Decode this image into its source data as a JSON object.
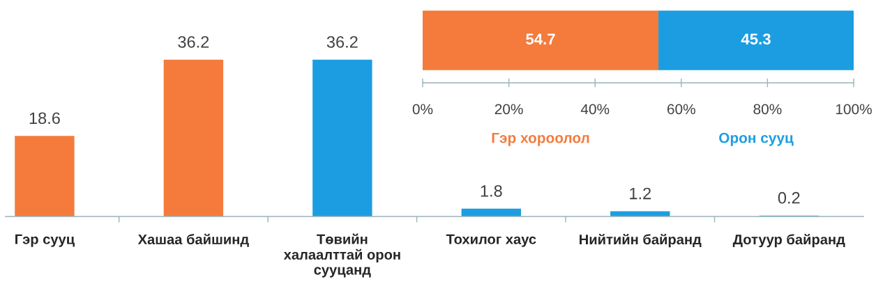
{
  "chart_data": [
    {
      "type": "bar",
      "categories": [
        "Гэр сууц",
        "Хашаа байшинд",
        "Төвийн\nхалаалттай орон\nсууцанд",
        "Тохилог хаус",
        "Нийтийн байранд",
        "Дотуур байранд"
      ],
      "values": [
        18.6,
        36.2,
        36.2,
        1.8,
        1.2,
        0.2
      ],
      "colors": [
        "#f47b3c",
        "#f47b3c",
        "#1c9de2",
        "#1c9de2",
        "#1c9de2",
        "#1c9de2"
      ],
      "data_labels": true,
      "tick_labels": "x"
    },
    {
      "type": "bar",
      "orientation": "horizontal",
      "stacked": true,
      "categories": [
        null
      ],
      "series": [
        {
          "name": "Гэр хороолол",
          "color": "#f47b3c",
          "values": [
            54.7
          ]
        },
        {
          "name": "Орон сууц",
          "color": "#1c9de2",
          "values": [
            45.3
          ]
        }
      ],
      "xlim": [
        0,
        100
      ],
      "xticks": [
        {
          "value": 0,
          "label": "0%"
        },
        {
          "value": 20,
          "label": "20%"
        },
        {
          "value": 40,
          "label": "40%"
        },
        {
          "value": 60,
          "label": "60%"
        },
        {
          "value": 80,
          "label": "80%"
        },
        {
          "value": 100,
          "label": "100%"
        }
      ],
      "data_labels": true,
      "tick_labels": "x"
    }
  ]
}
